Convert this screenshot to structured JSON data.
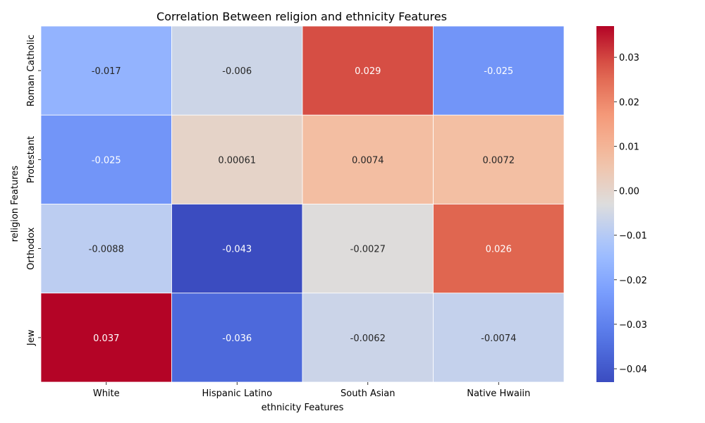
{
  "chart_data": {
    "type": "heatmap",
    "title": "Correlation Between religion and ethnicity Features",
    "xlabel": "ethnicity Features",
    "ylabel": "religion Features",
    "x_categories": [
      "White",
      "Hispanic Latino",
      "South Asian",
      "Native Hwaiin"
    ],
    "y_categories": [
      "Roman Catholic",
      "Protestant",
      "Orthodox",
      "Jew"
    ],
    "values": [
      [
        -0.017,
        -0.006,
        0.029,
        -0.025
      ],
      [
        -0.025,
        0.00061,
        0.0074,
        0.0072
      ],
      [
        -0.0088,
        -0.043,
        -0.0027,
        0.026
      ],
      [
        0.037,
        -0.036,
        -0.0062,
        -0.0074
      ]
    ],
    "value_labels": [
      [
        "-0.017",
        "-0.006",
        "0.029",
        "-0.025"
      ],
      [
        "-0.025",
        "0.00061",
        "0.0074",
        "0.0072"
      ],
      [
        "-0.0088",
        "-0.043",
        "-0.0027",
        "0.026"
      ],
      [
        "0.037",
        "-0.036",
        "-0.0062",
        "-0.0074"
      ]
    ],
    "colormap": "coolwarm",
    "vmin": -0.043,
    "vmax": 0.037,
    "colorbar_ticks": [
      {
        "value": 0.03,
        "label": "0.03"
      },
      {
        "value": 0.02,
        "label": "0.02"
      },
      {
        "value": 0.01,
        "label": "0.01"
      },
      {
        "value": 0.0,
        "label": "0.00"
      },
      {
        "value": -0.01,
        "label": "−0.01"
      },
      {
        "value": -0.02,
        "label": "−0.02"
      },
      {
        "value": -0.03,
        "label": "−0.03"
      },
      {
        "value": -0.04,
        "label": "−0.04"
      }
    ]
  }
}
